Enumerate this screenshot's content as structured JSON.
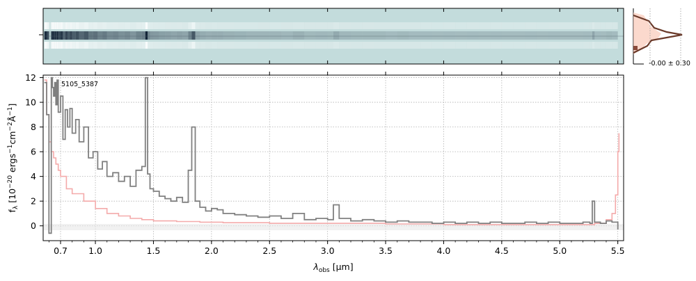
{
  "chart_data": [
    {
      "type": "heatmap",
      "panel": "2d-spectrum",
      "colormap": [
        "#c3dcdc",
        "#ffffff",
        "#0b1a2e"
      ],
      "description_rows": "trace centered on middle row"
    },
    {
      "type": "line",
      "panel": "1d-spectrum",
      "annotation": "5105_5387",
      "xlabel_main": "λ",
      "xlabel_sub": "obs",
      "xlabel_unit": " [μm]",
      "ylabel_prefix": "f",
      "ylabel_sub": "λ",
      "ylabel_rest": " [10",
      "ylabel_exp1": "−20",
      "ylabel_rest2": " ergs",
      "ylabel_exp2": "−1",
      "ylabel_rest3": "cm",
      "ylabel_exp3": "−2",
      "ylabel_rest4": "Å",
      "ylabel_exp4": "−1",
      "ylabel_end": "]",
      "x_ticks": [
        {
          "label": "0.7",
          "v": 0.7
        },
        {
          "label": "1.0",
          "v": 1.0
        },
        {
          "label": "1.5",
          "v": 1.5
        },
        {
          "label": "2.0",
          "v": 2.0
        },
        {
          "label": "2.5",
          "v": 2.5
        },
        {
          "label": "3.0",
          "v": 3.0
        },
        {
          "label": "3.5",
          "v": 3.5
        },
        {
          "label": "4.0",
          "v": 4.0
        },
        {
          "label": "4.5",
          "v": 4.5
        },
        {
          "label": "5.0",
          "v": 5.0
        },
        {
          "label": "5.5",
          "v": 5.5
        }
      ],
      "y_ticks": [
        0,
        2,
        4,
        6,
        8,
        10,
        12
      ],
      "xlim": [
        0.55,
        5.55
      ],
      "ylim": [
        -1.2,
        12.2
      ],
      "grid": true,
      "series": [
        {
          "role": "flux",
          "color": "#808080",
          "x": [
            0.56,
            0.58,
            0.6,
            0.62,
            0.63,
            0.64,
            0.65,
            0.66,
            0.67,
            0.68,
            0.7,
            0.72,
            0.74,
            0.76,
            0.78,
            0.8,
            0.83,
            0.86,
            0.9,
            0.94,
            0.98,
            1.02,
            1.06,
            1.1,
            1.15,
            1.2,
            1.25,
            1.3,
            1.35,
            1.4,
            1.43,
            1.45,
            1.47,
            1.5,
            1.55,
            1.6,
            1.65,
            1.7,
            1.75,
            1.8,
            1.83,
            1.86,
            1.9,
            1.95,
            2.0,
            2.05,
            2.1,
            2.2,
            2.3,
            2.4,
            2.5,
            2.6,
            2.7,
            2.8,
            2.9,
            3.0,
            3.05,
            3.1,
            3.2,
            3.3,
            3.4,
            3.5,
            3.6,
            3.7,
            3.8,
            3.9,
            4.0,
            4.1,
            4.2,
            4.3,
            4.4,
            4.5,
            4.6,
            4.7,
            4.8,
            4.9,
            5.0,
            5.1,
            5.2,
            5.26,
            5.28,
            5.3,
            5.35,
            5.4,
            5.45,
            5.5
          ],
          "y": [
            11.6,
            9.0,
            -0.6,
            12.0,
            11.2,
            10.5,
            11.6,
            9.8,
            11.8,
            9.2,
            10.5,
            7.0,
            9.4,
            8.0,
            9.5,
            7.5,
            8.6,
            6.8,
            8.0,
            5.5,
            6.0,
            4.6,
            5.2,
            4.0,
            4.3,
            3.6,
            4.0,
            3.2,
            4.5,
            4.8,
            12.0,
            4.2,
            3.0,
            2.8,
            2.4,
            2.2,
            2.0,
            2.3,
            1.9,
            4.5,
            8.0,
            2.0,
            1.5,
            1.2,
            1.4,
            1.3,
            1.0,
            0.9,
            0.8,
            0.7,
            0.8,
            0.6,
            1.0,
            0.5,
            0.6,
            0.5,
            1.7,
            0.6,
            0.4,
            0.5,
            0.4,
            0.3,
            0.4,
            0.3,
            0.3,
            0.2,
            0.3,
            0.2,
            0.3,
            0.2,
            0.3,
            0.2,
            0.2,
            0.3,
            0.2,
            0.3,
            0.2,
            0.2,
            0.3,
            0.2,
            2.0,
            0.3,
            0.2,
            0.4,
            0.3,
            -0.3
          ]
        },
        {
          "role": "error",
          "color": "#f4aaaa",
          "x": [
            0.56,
            0.58,
            0.6,
            0.62,
            0.64,
            0.66,
            0.68,
            0.7,
            0.75,
            0.8,
            0.9,
            1.0,
            1.1,
            1.2,
            1.3,
            1.4,
            1.5,
            1.7,
            1.9,
            2.1,
            2.5,
            3.0,
            3.5,
            4.0,
            4.5,
            5.0,
            5.3,
            5.4,
            5.45,
            5.48,
            5.5,
            5.51
          ],
          "y": [
            11.8,
            9.0,
            6.8,
            6.0,
            5.5,
            5.0,
            4.5,
            4.0,
            3.0,
            2.6,
            2.0,
            1.4,
            1.0,
            0.8,
            0.6,
            0.5,
            0.4,
            0.35,
            0.3,
            0.25,
            0.2,
            0.2,
            0.15,
            0.1,
            0.1,
            0.1,
            0.2,
            0.5,
            1.0,
            2.5,
            6.0,
            7.5
          ]
        }
      ]
    },
    {
      "type": "line",
      "panel": "profile",
      "label": "-0.00 ± 0.30",
      "colors": {
        "profile": "#6b3a2a",
        "fill": "#f9c9b8",
        "data": "#8b4a3a"
      }
    }
  ]
}
